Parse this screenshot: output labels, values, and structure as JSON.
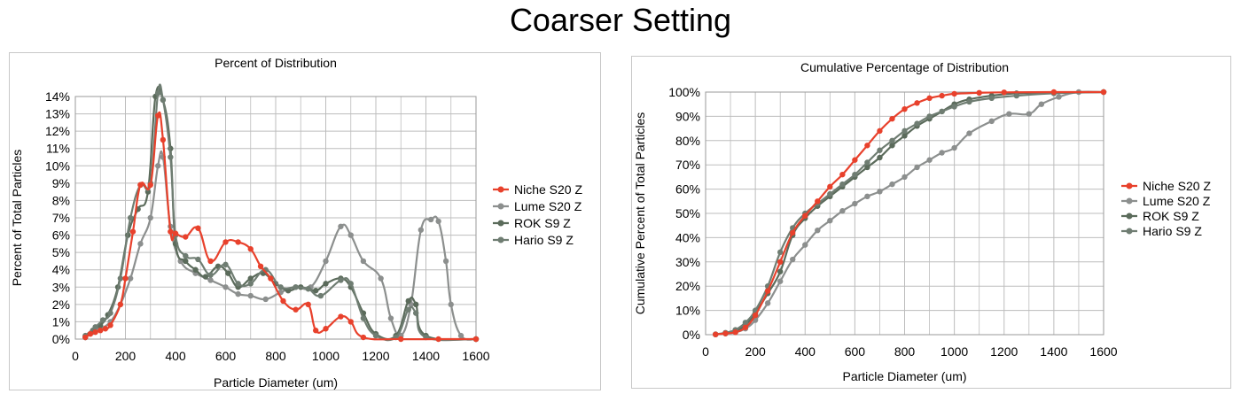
{
  "page_title": "Coarser Setting",
  "colors": {
    "niche": "#e8412c",
    "lume": "#8c8f8e",
    "rok": "#5b6b5b",
    "hario": "#6f7d72",
    "grid": "#bdbdbd"
  },
  "chart_data": [
    {
      "type": "line",
      "title": "Percent of Distribution",
      "xlabel": "Particle Diameter (um)",
      "ylabel": "Percent of Total Particles",
      "xlim": [
        0,
        1600
      ],
      "ylim": [
        0,
        14
      ],
      "x_ticks": [
        0,
        200,
        400,
        600,
        800,
        1000,
        1200,
        1400,
        1600
      ],
      "y_ticks": [
        "0%",
        "1%",
        "2%",
        "3%",
        "4%",
        "5%",
        "6%",
        "7%",
        "8%",
        "9%",
        "10%",
        "11%",
        "12%",
        "13%",
        "14%"
      ],
      "grid": true,
      "legend_position": "right",
      "series": [
        {
          "name": "Niche S20 Z",
          "color": "#e8412c",
          "points": [
            [
              40,
              0.1
            ],
            [
              60,
              0.3
            ],
            [
              80,
              0.4
            ],
            [
              100,
              0.5
            ],
            [
              120,
              0.6
            ],
            [
              140,
              0.8
            ],
            [
              180,
              2.0
            ],
            [
              200,
              3.5
            ],
            [
              230,
              6.2
            ],
            [
              260,
              8.9
            ],
            [
              300,
              8.9
            ],
            [
              330,
              12.9
            ],
            [
              350,
              11.5
            ],
            [
              380,
              6.2
            ],
            [
              400,
              6.1
            ],
            [
              440,
              5.9
            ],
            [
              490,
              6.4
            ],
            [
              540,
              4.5
            ],
            [
              600,
              5.6
            ],
            [
              650,
              5.6
            ],
            [
              700,
              5.2
            ],
            [
              740,
              4.2
            ],
            [
              780,
              3.5
            ],
            [
              830,
              2.2
            ],
            [
              880,
              1.7
            ],
            [
              930,
              2.0
            ],
            [
              960,
              0.5
            ],
            [
              1000,
              0.6
            ],
            [
              1060,
              1.3
            ],
            [
              1100,
              1.0
            ],
            [
              1150,
              0.1
            ],
            [
              1300,
              0.0
            ],
            [
              1450,
              0.0
            ],
            [
              1600,
              0.0
            ]
          ]
        },
        {
          "name": "Lume S20 Z",
          "color": "#8c8f8e",
          "points": [
            [
              40,
              0.1
            ],
            [
              70,
              0.4
            ],
            [
              100,
              0.6
            ],
            [
              140,
              1.0
            ],
            [
              180,
              2.0
            ],
            [
              220,
              3.5
            ],
            [
              260,
              5.5
            ],
            [
              300,
              7.0
            ],
            [
              330,
              10.0
            ],
            [
              350,
              10.5
            ],
            [
              380,
              6.5
            ],
            [
              420,
              4.5
            ],
            [
              480,
              3.8
            ],
            [
              540,
              3.4
            ],
            [
              600,
              3.0
            ],
            [
              650,
              2.6
            ],
            [
              700,
              2.5
            ],
            [
              760,
              2.3
            ],
            [
              820,
              2.7
            ],
            [
              880,
              3.0
            ],
            [
              940,
              3.0
            ],
            [
              1000,
              4.5
            ],
            [
              1060,
              6.5
            ],
            [
              1100,
              6.0
            ],
            [
              1150,
              4.5
            ],
            [
              1220,
              3.5
            ],
            [
              1260,
              1.2
            ],
            [
              1300,
              0.2
            ],
            [
              1340,
              2.0
            ],
            [
              1380,
              6.3
            ],
            [
              1420,
              6.9
            ],
            [
              1450,
              6.8
            ],
            [
              1480,
              4.5
            ],
            [
              1500,
              2.0
            ],
            [
              1540,
              0.2
            ],
            [
              1600,
              0.0
            ]
          ]
        },
        {
          "name": "ROK S9 Z",
          "color": "#5b6b5b",
          "points": [
            [
              40,
              0.1
            ],
            [
              70,
              0.5
            ],
            [
              100,
              0.8
            ],
            [
              130,
              1.4
            ],
            [
              170,
              3.0
            ],
            [
              210,
              6.0
            ],
            [
              250,
              7.5
            ],
            [
              290,
              8.5
            ],
            [
              320,
              14.0
            ],
            [
              350,
              13.8
            ],
            [
              380,
              11.0
            ],
            [
              400,
              5.5
            ],
            [
              440,
              4.5
            ],
            [
              480,
              4.0
            ],
            [
              520,
              3.6
            ],
            [
              570,
              4.2
            ],
            [
              610,
              3.8
            ],
            [
              650,
              3.0
            ],
            [
              700,
              3.5
            ],
            [
              750,
              3.8
            ],
            [
              800,
              3.2
            ],
            [
              850,
              2.8
            ],
            [
              900,
              3.0
            ],
            [
              960,
              2.8
            ],
            [
              1000,
              3.2
            ],
            [
              1060,
              3.5
            ],
            [
              1100,
              3.0
            ],
            [
              1150,
              1.5
            ],
            [
              1200,
              0.3
            ],
            [
              1280,
              0.2
            ],
            [
              1330,
              2.2
            ],
            [
              1360,
              2.0
            ],
            [
              1400,
              0.2
            ],
            [
              1600,
              0.0
            ]
          ]
        },
        {
          "name": "Hario S9 Z",
          "color": "#6f7d72",
          "points": [
            [
              40,
              0.2
            ],
            [
              80,
              0.7
            ],
            [
              110,
              1.1
            ],
            [
              140,
              1.5
            ],
            [
              180,
              3.5
            ],
            [
              220,
              7.0
            ],
            [
              260,
              8.9
            ],
            [
              300,
              9.0
            ],
            [
              330,
              14.2
            ],
            [
              350,
              13.8
            ],
            [
              380,
              10.5
            ],
            [
              400,
              6.0
            ],
            [
              440,
              4.8
            ],
            [
              490,
              4.6
            ],
            [
              540,
              3.7
            ],
            [
              600,
              4.3
            ],
            [
              650,
              3.2
            ],
            [
              700,
              3.2
            ],
            [
              760,
              4.0
            ],
            [
              820,
              3.0
            ],
            [
              880,
              3.0
            ],
            [
              930,
              2.9
            ],
            [
              980,
              2.5
            ],
            [
              1060,
              3.4
            ],
            [
              1100,
              3.2
            ],
            [
              1150,
              1.2
            ],
            [
              1200,
              0.2
            ],
            [
              1280,
              0.1
            ],
            [
              1330,
              1.7
            ],
            [
              1360,
              1.5
            ],
            [
              1400,
              0.1
            ],
            [
              1600,
              0.0
            ]
          ]
        }
      ]
    },
    {
      "type": "line",
      "title": "Cumulative Percentage of Distribution",
      "xlabel": "Particle Diameter (um)",
      "ylabel": "Cumulative Percent of Total Particles",
      "xlim": [
        0,
        1600
      ],
      "ylim": [
        0,
        100
      ],
      "x_ticks": [
        0,
        200,
        400,
        600,
        800,
        1000,
        1200,
        1400,
        1600
      ],
      "y_ticks": [
        "0%",
        "10%",
        "20%",
        "30%",
        "40%",
        "50%",
        "60%",
        "70%",
        "80%",
        "90%",
        "100%"
      ],
      "grid": true,
      "legend_position": "right",
      "series": [
        {
          "name": "Niche S20 Z",
          "color": "#e8412c",
          "points": [
            [
              40,
              0.1
            ],
            [
              80,
              0.5
            ],
            [
              120,
              1.0
            ],
            [
              160,
              3.0
            ],
            [
              200,
              8.0
            ],
            [
              250,
              18.0
            ],
            [
              300,
              30.0
            ],
            [
              350,
              42.0
            ],
            [
              400,
              49.0
            ],
            [
              450,
              55.0
            ],
            [
              500,
              61.0
            ],
            [
              550,
              66.0
            ],
            [
              600,
              72.0
            ],
            [
              650,
              78.0
            ],
            [
              700,
              84.0
            ],
            [
              750,
              89.0
            ],
            [
              800,
              93.0
            ],
            [
              850,
              95.5
            ],
            [
              900,
              97.5
            ],
            [
              950,
              98.5
            ],
            [
              1000,
              99.3
            ],
            [
              1100,
              99.7
            ],
            [
              1200,
              99.9
            ],
            [
              1400,
              100.0
            ],
            [
              1600,
              100.0
            ]
          ]
        },
        {
          "name": "Lume S20 Z",
          "color": "#8c8f8e",
          "points": [
            [
              40,
              0.1
            ],
            [
              80,
              0.5
            ],
            [
              120,
              1.0
            ],
            [
              160,
              2.5
            ],
            [
              200,
              6.0
            ],
            [
              250,
              13.0
            ],
            [
              300,
              22.0
            ],
            [
              350,
              31.0
            ],
            [
              400,
              37.0
            ],
            [
              450,
              43.0
            ],
            [
              500,
              47.0
            ],
            [
              550,
              51.0
            ],
            [
              600,
              54.0
            ],
            [
              650,
              57.0
            ],
            [
              700,
              59.0
            ],
            [
              750,
              62.0
            ],
            [
              800,
              65.0
            ],
            [
              850,
              69.0
            ],
            [
              900,
              72.0
            ],
            [
              950,
              75.0
            ],
            [
              1000,
              77.0
            ],
            [
              1060,
              83.0
            ],
            [
              1150,
              88.0
            ],
            [
              1220,
              91.0
            ],
            [
              1300,
              91.0
            ],
            [
              1350,
              95.0
            ],
            [
              1420,
              98.0
            ],
            [
              1500,
              100.0
            ],
            [
              1600,
              100.0
            ]
          ]
        },
        {
          "name": "ROK S9 Z",
          "color": "#5b6b5b",
          "points": [
            [
              40,
              0.1
            ],
            [
              80,
              0.5
            ],
            [
              120,
              1.5
            ],
            [
              160,
              4.0
            ],
            [
              200,
              9.0
            ],
            [
              250,
              17.0
            ],
            [
              300,
              26.0
            ],
            [
              350,
              41.0
            ],
            [
              400,
              48.0
            ],
            [
              450,
              53.0
            ],
            [
              500,
              57.0
            ],
            [
              550,
              61.0
            ],
            [
              600,
              65.0
            ],
            [
              650,
              69.0
            ],
            [
              700,
              73.0
            ],
            [
              750,
              78.0
            ],
            [
              800,
              82.0
            ],
            [
              850,
              86.0
            ],
            [
              900,
              89.0
            ],
            [
              950,
              92.0
            ],
            [
              1000,
              95.0
            ],
            [
              1060,
              97.0
            ],
            [
              1150,
              98.5
            ],
            [
              1250,
              99.5
            ],
            [
              1400,
              99.8
            ],
            [
              1600,
              100.0
            ]
          ]
        },
        {
          "name": "Hario S9 Z",
          "color": "#6f7d72",
          "points": [
            [
              40,
              0.2
            ],
            [
              80,
              0.8
            ],
            [
              120,
              2.0
            ],
            [
              160,
              5.0
            ],
            [
              200,
              10.0
            ],
            [
              250,
              20.0
            ],
            [
              300,
              34.0
            ],
            [
              350,
              44.0
            ],
            [
              400,
              50.0
            ],
            [
              450,
              54.0
            ],
            [
              500,
              58.0
            ],
            [
              550,
              62.0
            ],
            [
              600,
              66.0
            ],
            [
              650,
              71.0
            ],
            [
              700,
              76.0
            ],
            [
              750,
              80.0
            ],
            [
              800,
              84.0
            ],
            [
              850,
              87.0
            ],
            [
              900,
              90.0
            ],
            [
              950,
              92.0
            ],
            [
              1000,
              94.0
            ],
            [
              1060,
              96.0
            ],
            [
              1150,
              97.5
            ],
            [
              1250,
              98.5
            ],
            [
              1400,
              99.5
            ],
            [
              1600,
              100.0
            ]
          ]
        }
      ]
    }
  ]
}
